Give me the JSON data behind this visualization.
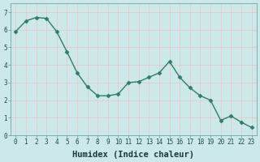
{
  "x": [
    0,
    1,
    2,
    3,
    4,
    5,
    6,
    7,
    8,
    9,
    10,
    11,
    12,
    13,
    14,
    15,
    16,
    17,
    18,
    19,
    20,
    21,
    22,
    23
  ],
  "y": [
    5.9,
    6.5,
    6.7,
    6.65,
    5.9,
    4.75,
    3.55,
    2.75,
    2.25,
    2.25,
    2.35,
    3.0,
    3.05,
    3.3,
    3.55,
    4.2,
    3.3,
    2.7,
    2.25,
    2.0,
    0.85,
    1.1,
    0.75,
    0.45
  ],
  "line_color": "#2e7d6e",
  "marker": "D",
  "marker_size": 2.5,
  "xlabel": "Humidex (Indice chaleur)",
  "xlim": [
    -0.5,
    23.5
  ],
  "ylim": [
    0,
    7.5
  ],
  "yticks": [
    0,
    1,
    2,
    3,
    4,
    5,
    6,
    7
  ],
  "xticks": [
    0,
    1,
    2,
    3,
    4,
    5,
    6,
    7,
    8,
    9,
    10,
    11,
    12,
    13,
    14,
    15,
    16,
    17,
    18,
    19,
    20,
    21,
    22,
    23
  ],
  "background_color": "#cce8e8",
  "grid_color": "#e8c8c8",
  "tick_label_fontsize": 5.5,
  "xlabel_fontsize": 7.5,
  "line_width": 1.0
}
